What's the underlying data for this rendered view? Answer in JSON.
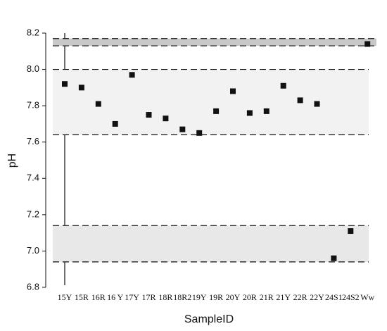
{
  "chart_data": {
    "type": "scatter",
    "x_label": "SampleID",
    "y_label": "pH",
    "categories": [
      "15Y",
      "15R",
      "16R",
      "16 Y",
      "17Y",
      "17R",
      "18R",
      "18R2",
      "19Y",
      "19R",
      "20Y",
      "20R",
      "21R",
      "21Y",
      "22R",
      "22Y",
      "24S1",
      "24S2",
      "Ww"
    ],
    "values": [
      7.92,
      7.9,
      7.81,
      7.7,
      7.97,
      7.75,
      7.73,
      7.67,
      7.65,
      7.77,
      7.88,
      7.76,
      7.77,
      7.91,
      7.83,
      7.81,
      6.96,
      7.11,
      8.14
    ],
    "color": "#111111",
    "bands": [
      {
        "range": [
          8.13,
          8.17
        ],
        "color": "#c8c8c8"
      },
      {
        "range": [
          7.64,
          8.0
        ],
        "color": "#f2f2f2"
      },
      {
        "range": [
          6.94,
          7.14
        ],
        "color": "#e8e8e8"
      }
    ],
    "ylim": [
      6.8,
      8.2
    ],
    "yticks": [
      6.8,
      {
        "value": 7,
        "label": "7.0"
      },
      7.2,
      7.4,
      7.6,
      7.8,
      {
        "value": 8,
        "label": "8.0"
      },
      8.2
    ]
  }
}
